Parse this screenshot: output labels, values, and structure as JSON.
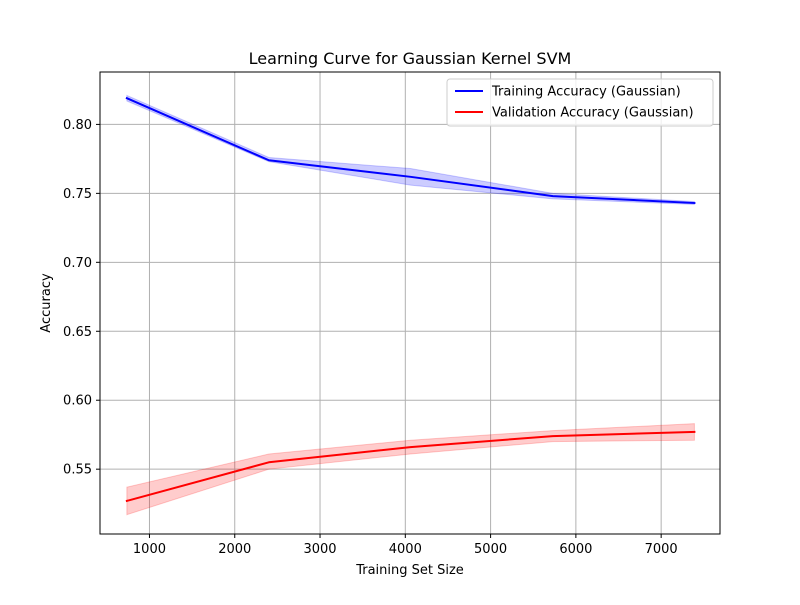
{
  "chart_data": {
    "type": "line",
    "title": "Learning Curve for Gaussian Kernel SVM",
    "xlabel": "Training Set Size",
    "ylabel": "Accuracy",
    "xlim": [
      420,
      7690
    ],
    "ylim": [
      0.503,
      0.838
    ],
    "grid": true,
    "legend_position": "upper right",
    "x": [
      735,
      2400,
      4060,
      5730,
      7390
    ],
    "x_ticks": [
      1000,
      2000,
      3000,
      4000,
      5000,
      6000,
      7000
    ],
    "x_tick_labels": [
      "1000",
      "2000",
      "3000",
      "4000",
      "5000",
      "6000",
      "7000"
    ],
    "y_ticks": [
      0.55,
      0.6,
      0.65,
      0.7,
      0.75,
      0.8
    ],
    "y_tick_labels": [
      "0.55",
      "0.60",
      "0.65",
      "0.70",
      "0.75",
      "0.80"
    ],
    "series": [
      {
        "name": "Training Accuracy (Gaussian)",
        "color": "#0000ff",
        "band_color": "#0000ff",
        "values": [
          0.819,
          0.774,
          0.762,
          0.748,
          0.743
        ],
        "band_lower": [
          0.817,
          0.773,
          0.756,
          0.746,
          0.742
        ],
        "band_upper": [
          0.821,
          0.776,
          0.768,
          0.75,
          0.744
        ]
      },
      {
        "name": "Validation Accuracy (Gaussian)",
        "color": "#ff0000",
        "band_color": "#ff0000",
        "values": [
          0.527,
          0.555,
          0.566,
          0.574,
          0.577
        ],
        "band_lower": [
          0.517,
          0.55,
          0.561,
          0.57,
          0.571
        ],
        "band_upper": [
          0.537,
          0.561,
          0.571,
          0.578,
          0.583
        ]
      }
    ]
  }
}
